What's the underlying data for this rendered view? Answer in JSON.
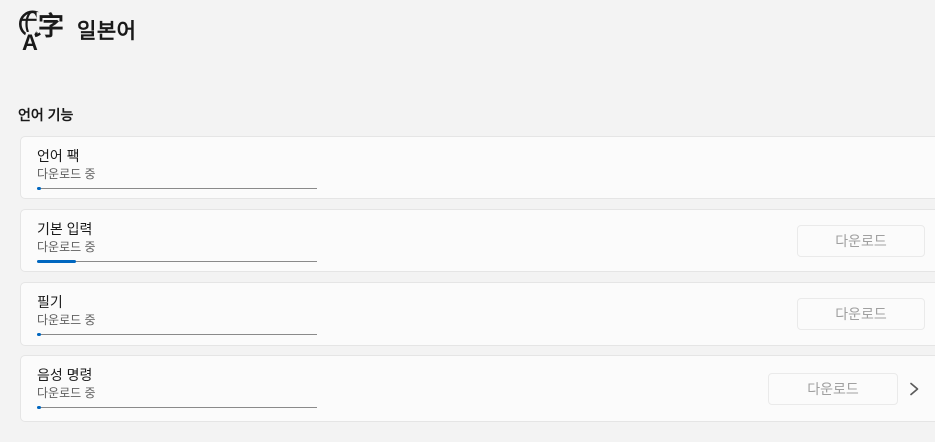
{
  "page": {
    "title": "일본어",
    "section_header": "언어 기능"
  },
  "icon": {
    "name": "language-translate-icon",
    "glyph_cjk": "字",
    "glyph_latin": "A"
  },
  "cards": [
    {
      "title": "언어 팩",
      "status": "다운로드 중",
      "progress_percent": 1.5
    },
    {
      "title": "기본 입력",
      "status": "다운로드 중",
      "progress_percent": 14,
      "button_label": "다운로드",
      "button_state": "disabled"
    },
    {
      "title": "필기",
      "status": "다운로드 중",
      "progress_percent": 1.5,
      "button_label": "다운로드",
      "button_state": "disabled"
    },
    {
      "title": "음성 명령",
      "status": "다운로드 중",
      "progress_percent": 1.5,
      "button_label": "다운로드",
      "button_state": "disabled",
      "has_chevron": true
    }
  ],
  "colors": {
    "accent": "#0067c0",
    "page_bg": "#f3f3f3",
    "card_bg": "#fbfbfb",
    "card_border": "#e5e5e5",
    "progress_track": "#8a8a8a",
    "disabled_button_text": "#a0a0a0"
  }
}
